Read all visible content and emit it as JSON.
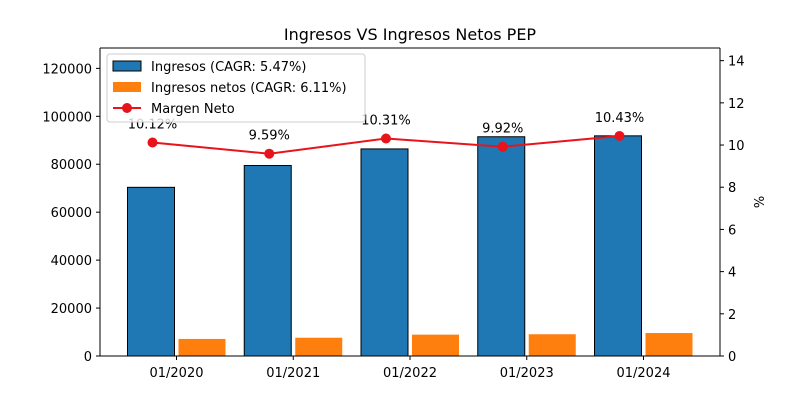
{
  "chart_data": {
    "type": "bar",
    "title": "Ingresos VS Ingresos Netos PEP",
    "categories": [
      "01/2020",
      "01/2021",
      "01/2022",
      "01/2023",
      "01/2024"
    ],
    "series": [
      {
        "name": "Ingresos (CAGR: 5.47%)",
        "type": "bar",
        "axis": "left",
        "color": "#1f77b4",
        "values": [
          70372,
          79474,
          86392,
          91471,
          91854
        ]
      },
      {
        "name": "Ingresos netos (CAGR: 6.11%)",
        "type": "bar",
        "axis": "left",
        "color": "#ff7f0e",
        "values": [
          7120,
          7618,
          8910,
          9074,
          9578
        ]
      },
      {
        "name": "Margen Neto",
        "type": "line",
        "axis": "right",
        "color": "#e8141c",
        "values": [
          10.12,
          9.59,
          10.31,
          9.92,
          10.43
        ],
        "labels": [
          "10.12%",
          "9.59%",
          "10.31%",
          "9.92%",
          "10.43%"
        ]
      }
    ],
    "y_left": {
      "ylim": [
        0,
        128500
      ],
      "ticks": [
        0,
        20000,
        40000,
        60000,
        80000,
        100000,
        120000
      ],
      "tick_labels": [
        "0",
        "20000",
        "40000",
        "60000",
        "80000",
        "100000",
        "120000"
      ]
    },
    "y_right": {
      "label": "%",
      "ylim": [
        0,
        14.6
      ],
      "ticks": [
        0,
        2,
        4,
        6,
        8,
        10,
        12,
        14
      ],
      "tick_labels": [
        "0",
        "2",
        "4",
        "6",
        "8",
        "10",
        "12",
        "14"
      ]
    },
    "grid": false,
    "legend_position": "top-left"
  }
}
